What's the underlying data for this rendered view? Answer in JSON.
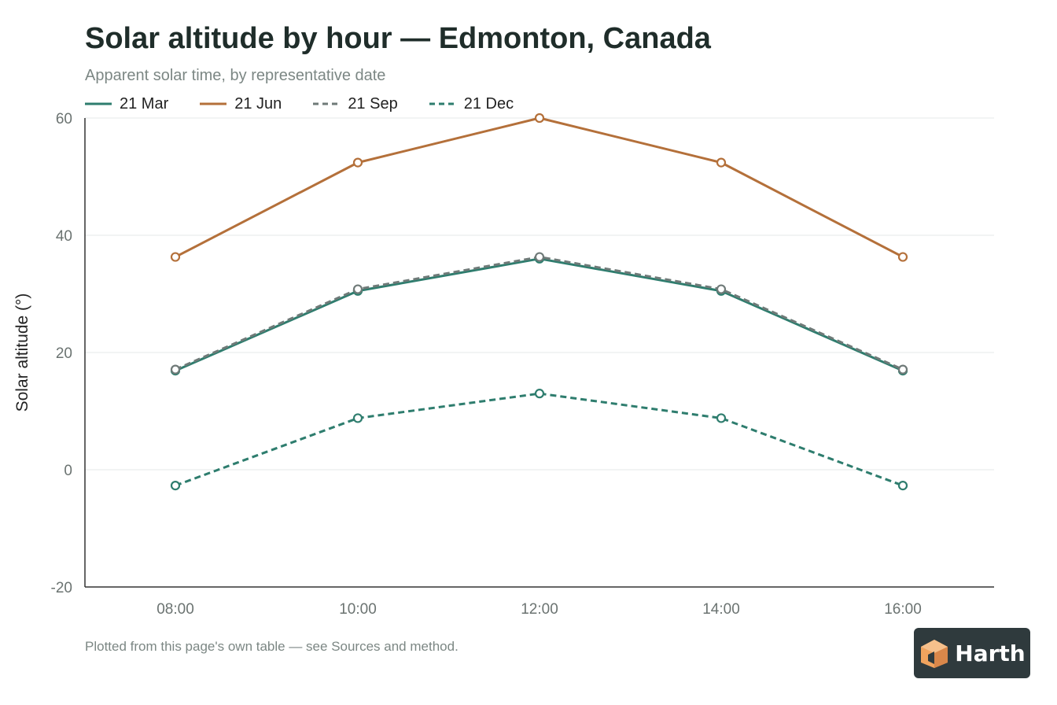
{
  "title": "Solar altitude by hour — Edmonton, Canada",
  "subtitle": "Apparent solar time, by representative date",
  "footnote": "Plotted from this page's own table — see Sources and method.",
  "logo_text": "Harth",
  "colors": {
    "teal": "#2e7d6e",
    "orange": "#b4703a",
    "gray": "#6f7a78",
    "grid": "#e6e9e8",
    "axis": "#333333",
    "tick": "#6b7371",
    "logo_bg": "#2f3a3d",
    "logo_accent": "#f0a35e"
  },
  "chart_data": {
    "type": "line",
    "title": "Solar altitude by hour — Edmonton, Canada",
    "subtitle": "Apparent solar time, by representative date",
    "xlabel": "",
    "ylabel": "Solar altitude (°)",
    "categories": [
      "08:00",
      "10:00",
      "12:00",
      "14:00",
      "16:00"
    ],
    "ylim": [
      -20,
      60
    ],
    "yticks": [
      -20,
      0,
      20,
      40,
      60
    ],
    "grid": true,
    "legend_position": "top-left",
    "series": [
      {
        "name": "21 Mar",
        "values": [
          16.9,
          30.5,
          36.0,
          30.5,
          16.9
        ],
        "color": "#2e7d6e",
        "dash": "solid"
      },
      {
        "name": "21 Jun",
        "values": [
          36.3,
          52.4,
          60.0,
          52.4,
          36.3
        ],
        "color": "#b4703a",
        "dash": "solid"
      },
      {
        "name": "21 Sep",
        "values": [
          17.1,
          30.8,
          36.3,
          30.8,
          17.1
        ],
        "color": "#6f7a78",
        "dash": "dashed"
      },
      {
        "name": "21 Dec",
        "values": [
          -2.7,
          8.8,
          13.0,
          8.8,
          -2.7
        ],
        "color": "#2e7d6e",
        "dash": "dashed"
      }
    ]
  }
}
